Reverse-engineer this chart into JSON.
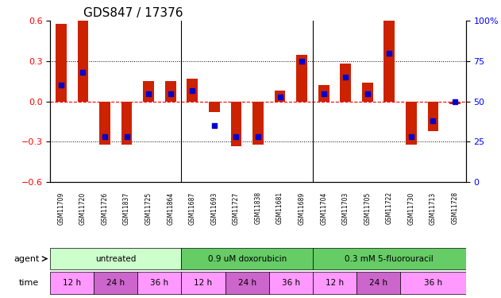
{
  "title": "GDS847 / 17376",
  "samples": [
    "GSM11709",
    "GSM11720",
    "GSM11726",
    "GSM11837",
    "GSM11725",
    "GSM11864",
    "GSM11687",
    "GSM11693",
    "GSM11727",
    "GSM11838",
    "GSM11681",
    "GSM11689",
    "GSM11704",
    "GSM11703",
    "GSM11705",
    "GSM11722",
    "GSM11730",
    "GSM11713",
    "GSM11728"
  ],
  "log_ratio": [
    0.58,
    0.6,
    -0.32,
    -0.32,
    0.15,
    0.15,
    0.17,
    -0.08,
    -0.33,
    -0.32,
    0.08,
    0.35,
    0.12,
    0.28,
    0.14,
    0.6,
    -0.32,
    -0.22,
    -0.02
  ],
  "percentile": [
    60,
    68,
    28,
    28,
    55,
    55,
    57,
    35,
    28,
    28,
    53,
    75,
    55,
    65,
    55,
    80,
    28,
    38,
    50
  ],
  "agents": [
    {
      "label": "untreated",
      "color": "#99ff99",
      "start": 0,
      "end": 6
    },
    {
      "label": "0.9 uM doxorubicin",
      "color": "#33cc33",
      "start": 6,
      "end": 12
    },
    {
      "label": "0.3 mM 5-fluorouracil",
      "color": "#33cc33",
      "start": 12,
      "end": 19
    }
  ],
  "time_groups": [
    {
      "label": "12 h",
      "color": "#ff99ff",
      "start": 0,
      "end": 2
    },
    {
      "label": "24 h",
      "color": "#cc66cc",
      "start": 2,
      "end": 4
    },
    {
      "label": "36 h",
      "color": "#ff99ff",
      "start": 4,
      "end": 6
    },
    {
      "label": "12 h",
      "color": "#ff99ff",
      "start": 6,
      "end": 8
    },
    {
      "label": "24 h",
      "color": "#cc66cc",
      "start": 8,
      "end": 10
    },
    {
      "label": "36 h",
      "color": "#ff99ff",
      "start": 10,
      "end": 12
    },
    {
      "label": "12 h",
      "color": "#ff99ff",
      "start": 12,
      "end": 14
    },
    {
      "label": "24 h",
      "color": "#cc66cc",
      "start": 14,
      "end": 16
    },
    {
      "label": "36 h",
      "color": "#ff99ff",
      "start": 16,
      "end": 19
    }
  ],
  "ylim": [
    -0.6,
    0.6
  ],
  "yticks": [
    -0.6,
    -0.3,
    0.0,
    0.3,
    0.6
  ],
  "right_yticks": [
    0,
    25,
    50,
    75,
    100
  ],
  "bar_color": "#cc2200",
  "dot_color": "#0000cc",
  "bg_color": "#f0f0f0",
  "axis_bg": "#ffffff"
}
